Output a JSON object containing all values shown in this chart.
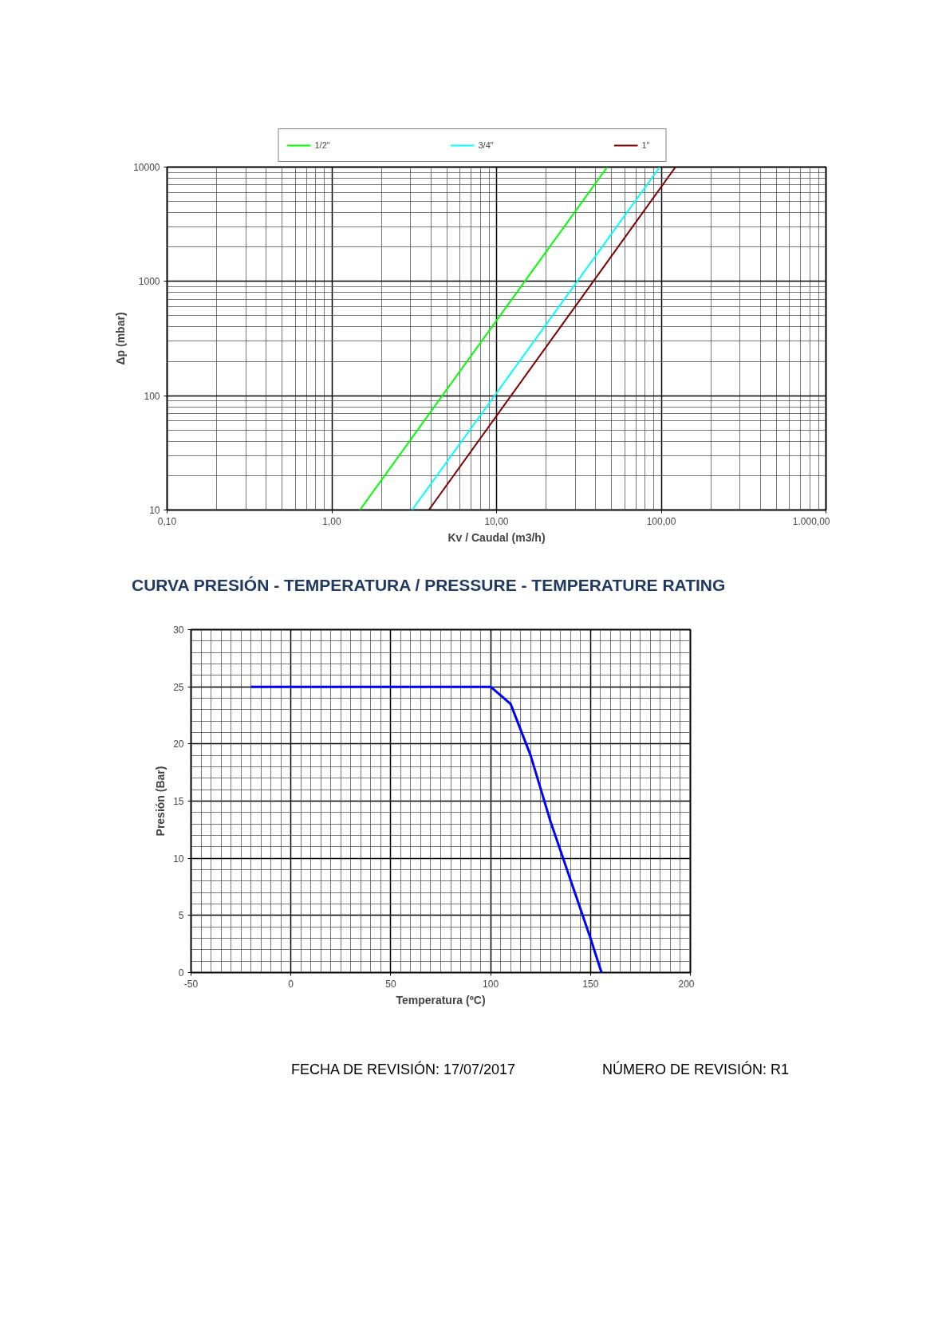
{
  "chart_data": [
    {
      "type": "line",
      "xlabel": "Kv / Caudal (m3/h)",
      "ylabel": "Δp (mbar)",
      "log": "xy",
      "grid": true,
      "legend": "top",
      "line_style": "solid",
      "xlim": [
        0.1,
        1000
      ],
      "ylim": [
        10,
        10000
      ],
      "xticks": [
        {
          "value": 0.1,
          "label": "0,10"
        },
        {
          "value": 1,
          "label": "1,00"
        },
        {
          "value": 10,
          "label": "10,00"
        },
        {
          "value": 100,
          "label": "100,00"
        },
        {
          "value": 1000,
          "label": "1.000,00"
        }
      ],
      "yticks": [
        10,
        100,
        1000,
        10000
      ],
      "series": [
        {
          "name": "1/2\"",
          "color": "#00ff00",
          "x": [
            1.48,
            47
          ],
          "values": [
            10,
            10000
          ]
        },
        {
          "name": "3/4\"",
          "color": "#00ffff",
          "x": [
            3.07,
            98
          ],
          "values": [
            10,
            10000
          ]
        },
        {
          "name": "1\"",
          "color": "#800000",
          "x": [
            3.88,
            122
          ],
          "values": [
            10,
            10000
          ]
        }
      ]
    },
    {
      "type": "line",
      "title": "CURVA PRESIÓN - TEMPERATURA / PRESSURE - TEMPERATURE RATING",
      "xlabel": "Temperatura (ºC)",
      "ylabel": "Presión (Bar)",
      "grid": true,
      "line_style": "solid",
      "xlim": [
        -50,
        200
      ],
      "ylim": [
        0,
        30
      ],
      "xticks": [
        -50,
        0,
        50,
        100,
        150,
        200
      ],
      "yticks": [
        0,
        5,
        10,
        15,
        20,
        25,
        30
      ],
      "series": [
        {
          "color": "#0000ff",
          "x": [
            -20,
            100,
            110,
            120,
            130,
            150,
            155.5
          ],
          "values": [
            25,
            25,
            23.5,
            19,
            13.2,
            3,
            0
          ]
        }
      ],
      "annotations": [
        "FECHA DE REVISIÓN: 17/07/2017",
        "NÚMERO DE REVISIÓN:  R1"
      ]
    }
  ]
}
